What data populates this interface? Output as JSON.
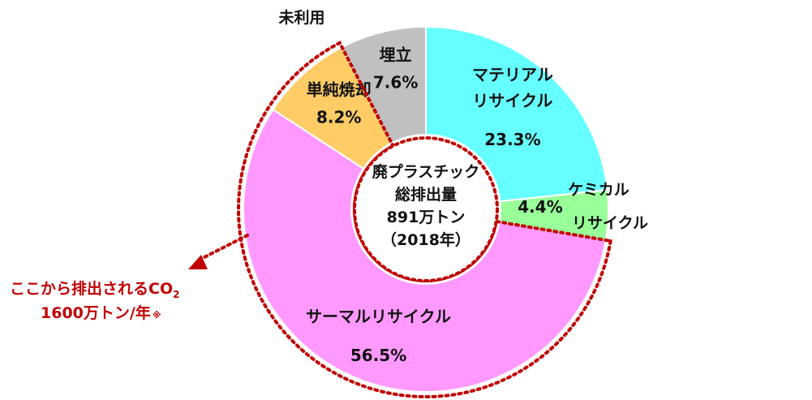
{
  "chart_data": {
    "type": "pie",
    "subtype": "donut",
    "title": "",
    "center_text": [
      "廃プラスチック",
      "総排出量",
      "891万トン",
      "（2018年）"
    ],
    "segments": [
      {
        "name_lines": [
          "マテリアル",
          "リサイクル"
        ],
        "value": 23.3,
        "value_label": "23.3%",
        "color": "#66ffff"
      },
      {
        "name_lines": [
          "ケミカル",
          "リサイクル"
        ],
        "value": 4.4,
        "value_label": "4.4%",
        "color": "#99ff99"
      },
      {
        "name_lines": [
          "サーマルリサイクル"
        ],
        "value": 56.5,
        "value_label": "56.5%",
        "color": "#ff99ff"
      },
      {
        "name_lines": [
          "単純焼却"
        ],
        "value": 8.2,
        "value_label": "8.2%",
        "color": "#ffcc66"
      },
      {
        "name_lines": [
          "未利用"
        ],
        "value": 0,
        "value_label": "",
        "color": "#c0c0c0"
      },
      {
        "name_lines": [
          "埋立"
        ],
        "value": 7.6,
        "value_label": "7.6%",
        "color": "#c0c0c0"
      }
    ],
    "annotation": {
      "line1": "ここから排出されるCO",
      "line1_sub": "2",
      "line2": "1600万トン/年",
      "line2_mark": "※",
      "color": "#c00000"
    },
    "highlight_color": "#c00000",
    "legend": "none"
  }
}
